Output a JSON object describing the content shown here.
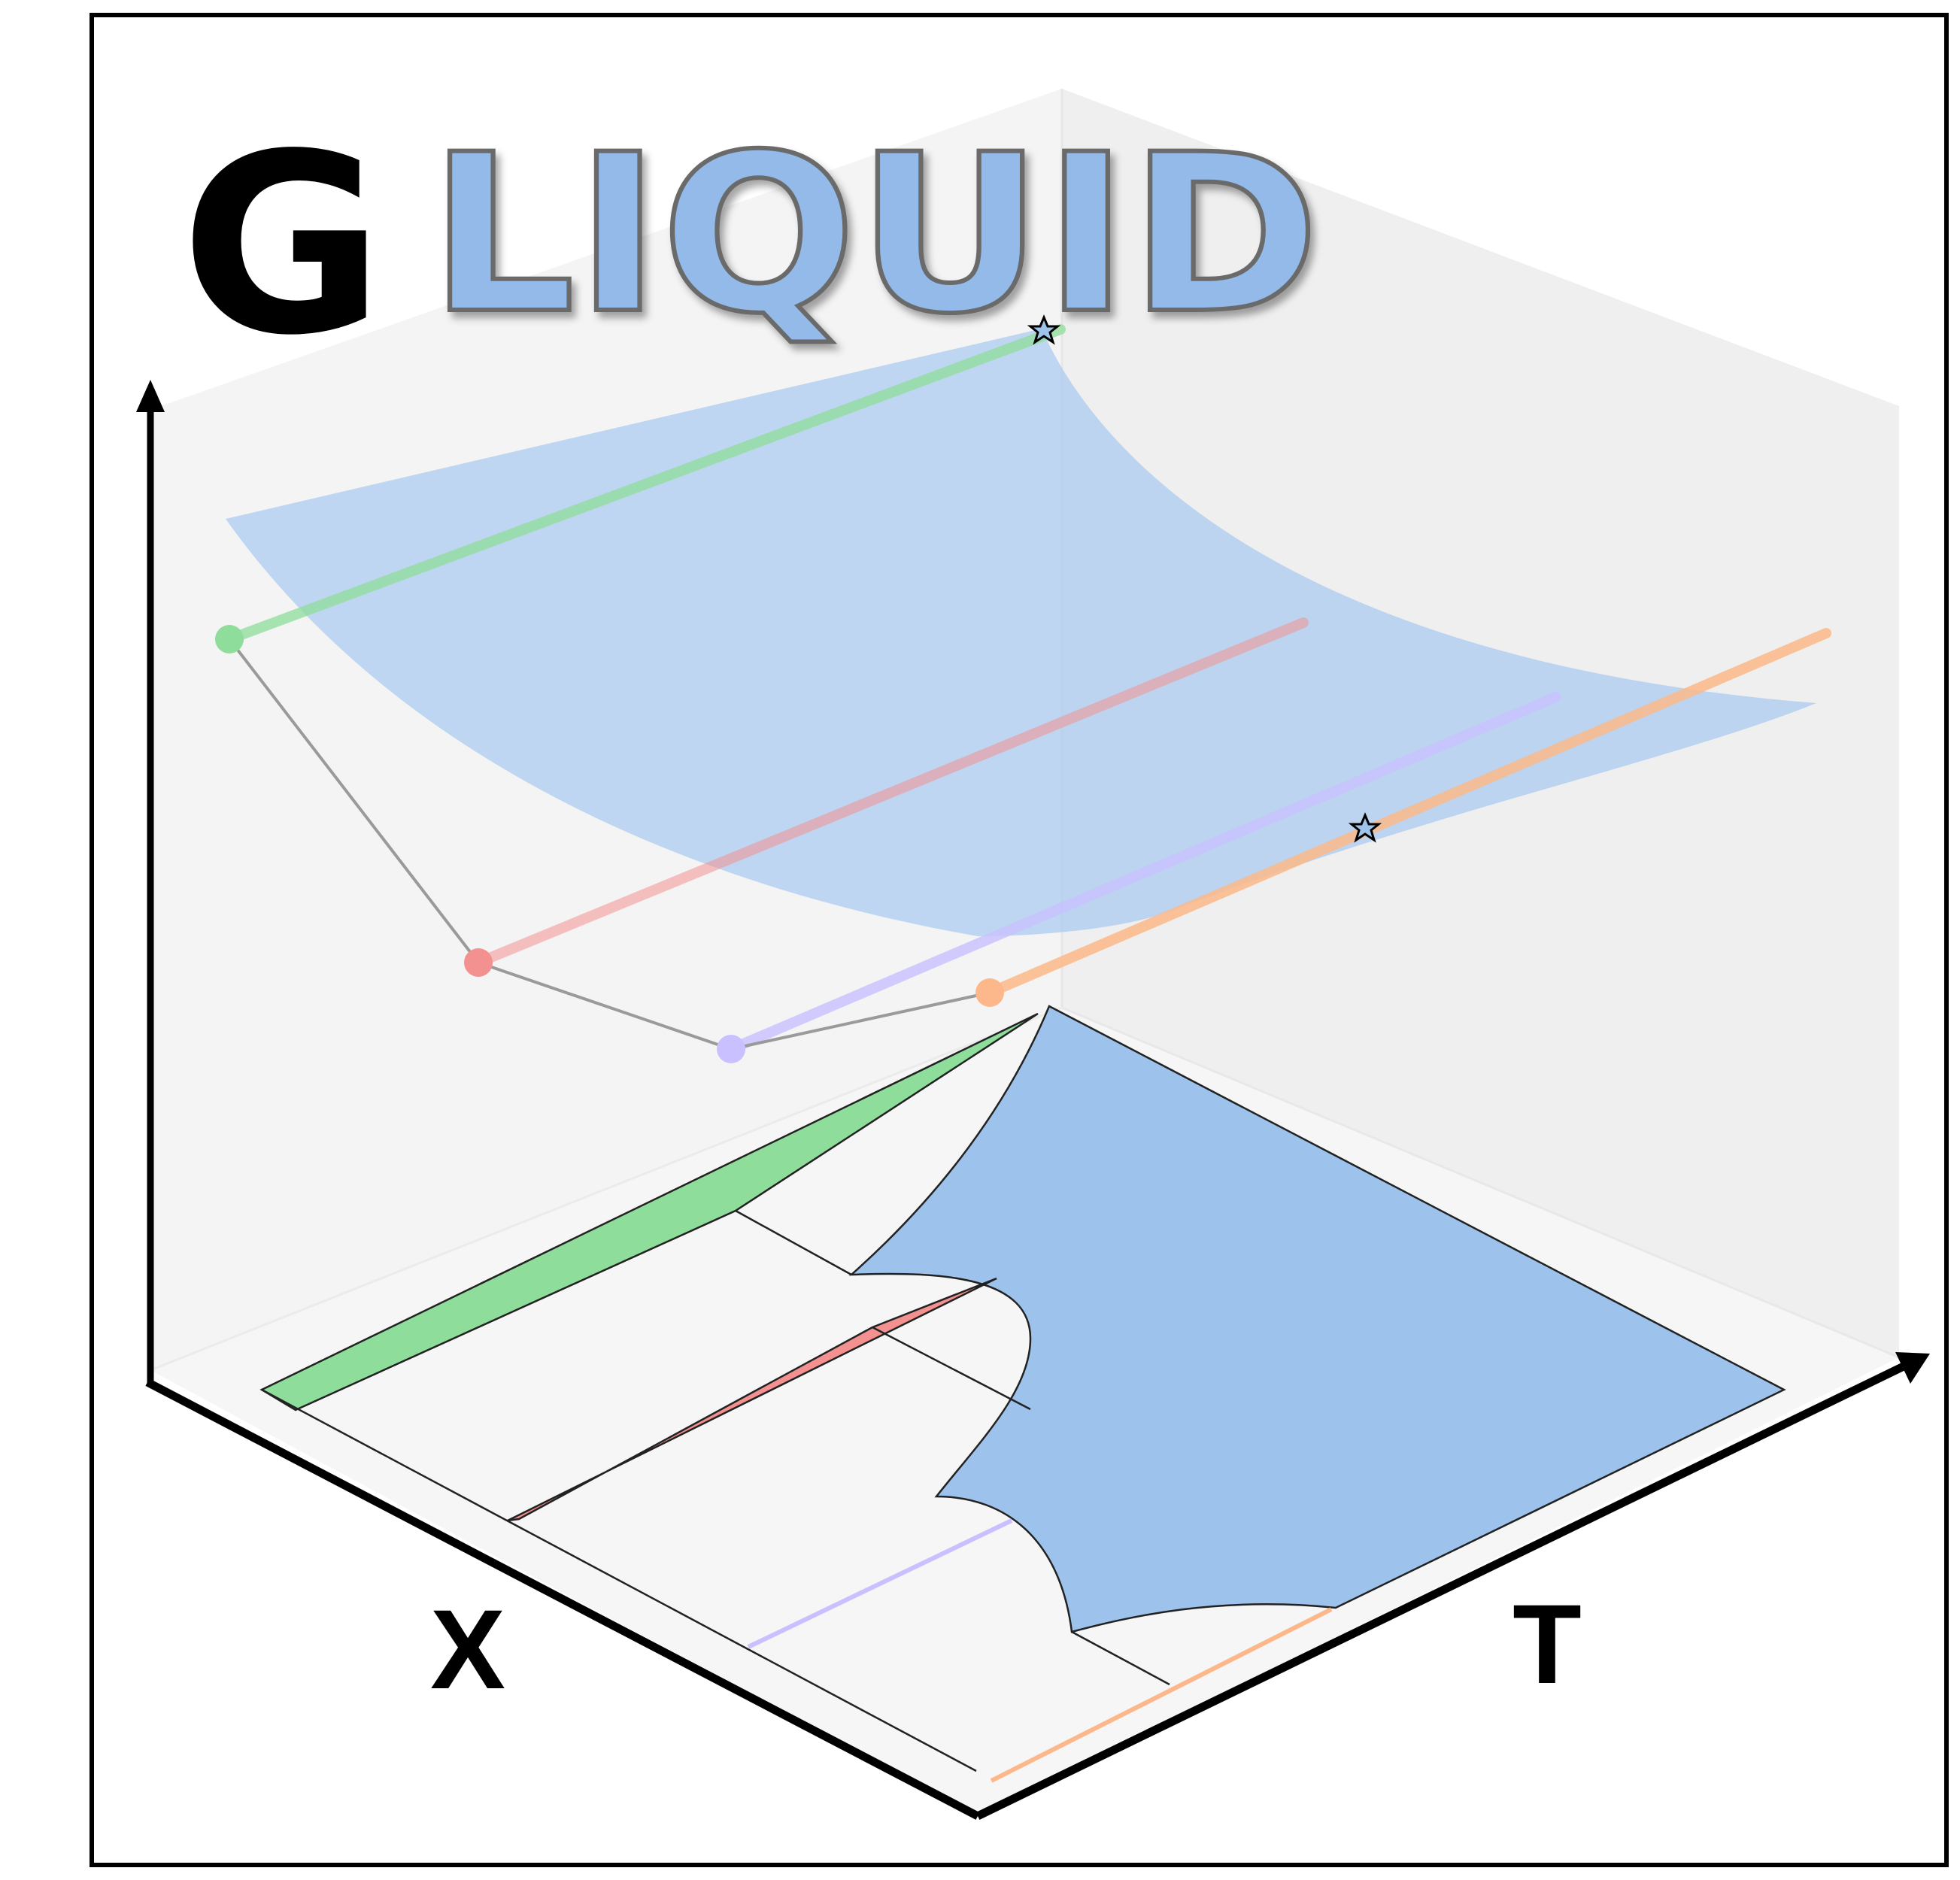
{
  "logo": {
    "letter_g": "G",
    "word": "LIQUID",
    "g_color": "#000000",
    "word_fill": "#93bae8",
    "word_stroke": "#6b6b6b"
  },
  "axes": {
    "x_label": "X",
    "t_label": "T"
  },
  "colors": {
    "liquid_surface": "#a7c9f0",
    "liquid_region": "#9dc2eb",
    "green_phase": "#8edd9a",
    "red_phase": "#f29190",
    "purple_phase": "#c8c0ff",
    "orange_phase": "#fcb88a",
    "connector": "#9a9a9a",
    "pane": "#f3f3f3"
  },
  "phases": [
    {
      "key": "green",
      "marker": "point"
    },
    {
      "key": "red",
      "marker": "point"
    },
    {
      "key": "purple",
      "marker": "point"
    },
    {
      "key": "orange",
      "marker": "point"
    }
  ],
  "markers": {
    "star_icon": "star-icon"
  }
}
